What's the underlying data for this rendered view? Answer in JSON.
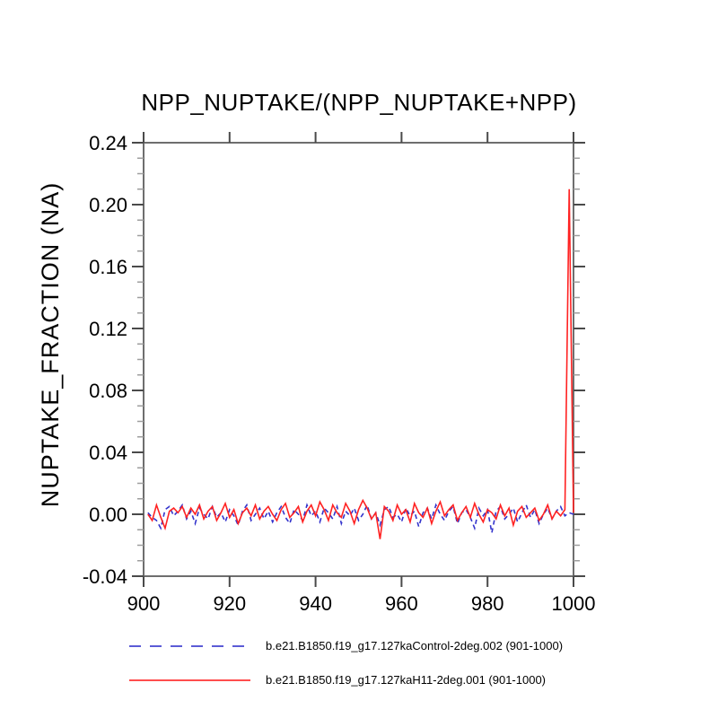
{
  "page": {
    "background": "#ffffff"
  },
  "chart_data": {
    "type": "line",
    "title": "NPP_NUPTAKE/(NPP_NUPTAKE+NPP)",
    "xlabel": "",
    "ylabel": "NUPTAKE_FRACTION (NA)",
    "xlim": [
      900,
      1000
    ],
    "ylim": [
      -0.04,
      0.24
    ],
    "xticks": [
      900,
      920,
      940,
      960,
      980,
      1000
    ],
    "xtick_labels": [
      "900",
      "920",
      "940",
      "960",
      "980",
      "1000"
    ],
    "yticks": [
      -0.04,
      0.0,
      0.04,
      0.08,
      0.12,
      0.16,
      0.2,
      0.24
    ],
    "ytick_labels": [
      "-0.04",
      "0.00",
      "0.04",
      "0.08",
      "0.12",
      "0.16",
      "0.20",
      "0.24"
    ],
    "y_minor_step": 0.01,
    "grid": false,
    "legend_position": "bottom",
    "axis_color": "#6e6e6e",
    "major_tick_color": "#4a4a4a",
    "minor_tick_color": "#9e9e9e",
    "text_color": "#000000",
    "x_start": 901,
    "series": [
      {
        "name": "b.e21.B1850.f19_g17.127kaControl-2deg.002 (901-1000)",
        "color": "#3333cc",
        "style": "dashed",
        "values": [
          0.001,
          -0.002,
          -0.004,
          -0.009,
          0.003,
          0.005,
          -0.001,
          0.002,
          0.006,
          -0.003,
          0.002,
          -0.006,
          0.004,
          0.0,
          -0.003,
          0.005,
          -0.002,
          0.001,
          -0.005,
          0.003,
          -0.001,
          -0.007,
          0.002,
          0.006,
          -0.004,
          0.0,
          0.004,
          -0.003,
          0.002,
          -0.005,
          0.001,
          0.005,
          -0.002,
          -0.006,
          0.003,
          0.0,
          -0.004,
          0.006,
          -0.001,
          0.002,
          -0.005,
          0.004,
          0.001,
          -0.003,
          0.005,
          -0.006,
          0.002,
          -0.001,
          0.004,
          -0.004,
          0.0,
          0.006,
          -0.003,
          0.001,
          -0.007,
          0.003,
          0.005,
          -0.002,
          0.0,
          -0.005,
          0.004,
          -0.001,
          0.002,
          -0.008,
          0.001,
          0.004,
          -0.003,
          0.006,
          0.0,
          -0.004,
          0.002,
          0.005,
          -0.006,
          0.001,
          0.003,
          -0.002,
          -0.009,
          0.004,
          -0.001,
          0.003,
          -0.012,
          0.002,
          0.005,
          -0.003,
          0.0,
          0.004,
          -0.005,
          0.001,
          0.006,
          -0.002,
          0.003,
          -0.006,
          0.0,
          0.004,
          -0.003,
          0.002,
          0.005,
          -0.001,
          0.001,
          0.0
        ]
      },
      {
        "name": "b.e21.B1850.f19_g17.127kaH11-2deg.001 (901-1000)",
        "color": "#ff2222",
        "style": "solid",
        "values": [
          0.0,
          -0.004,
          0.006,
          -0.002,
          -0.009,
          0.002,
          0.004,
          0.001,
          0.005,
          -0.002,
          0.004,
          0.0,
          0.006,
          -0.003,
          0.002,
          0.005,
          -0.004,
          0.001,
          0.007,
          -0.002,
          0.003,
          -0.006,
          0.001,
          0.004,
          -0.001,
          0.006,
          -0.003,
          0.002,
          0.005,
          0.0,
          -0.004,
          0.003,
          0.007,
          -0.002,
          0.001,
          0.005,
          -0.005,
          0.002,
          0.006,
          -0.001,
          0.008,
          0.003,
          -0.004,
          0.006,
          0.001,
          -0.002,
          0.007,
          0.002,
          -0.006,
          0.003,
          0.009,
          0.004,
          -0.003,
          0.001,
          -0.016,
          0.005,
          0.002,
          -0.004,
          0.006,
          0.0,
          0.003,
          -0.005,
          0.007,
          0.001,
          -0.002,
          0.004,
          -0.006,
          0.002,
          0.008,
          -0.001,
          0.003,
          0.006,
          -0.004,
          0.001,
          0.005,
          -0.002,
          0.007,
          0.0,
          -0.005,
          0.003,
          0.001,
          -0.003,
          0.006,
          -0.001,
          0.004,
          -0.007,
          0.002,
          0.005,
          -0.002,
          0.001,
          0.004,
          -0.004,
          0.0,
          0.006,
          -0.003,
          0.002,
          -0.001,
          0.003,
          0.21,
          0.001
        ]
      }
    ]
  },
  "legend": {
    "entries": [
      {
        "label": "b.e21.B1850.f19_g17.127kaControl-2deg.002 (901-1000)"
      },
      {
        "label": "b.e21.B1850.f19_g17.127kaH11-2deg.001 (901-1000)"
      }
    ]
  }
}
